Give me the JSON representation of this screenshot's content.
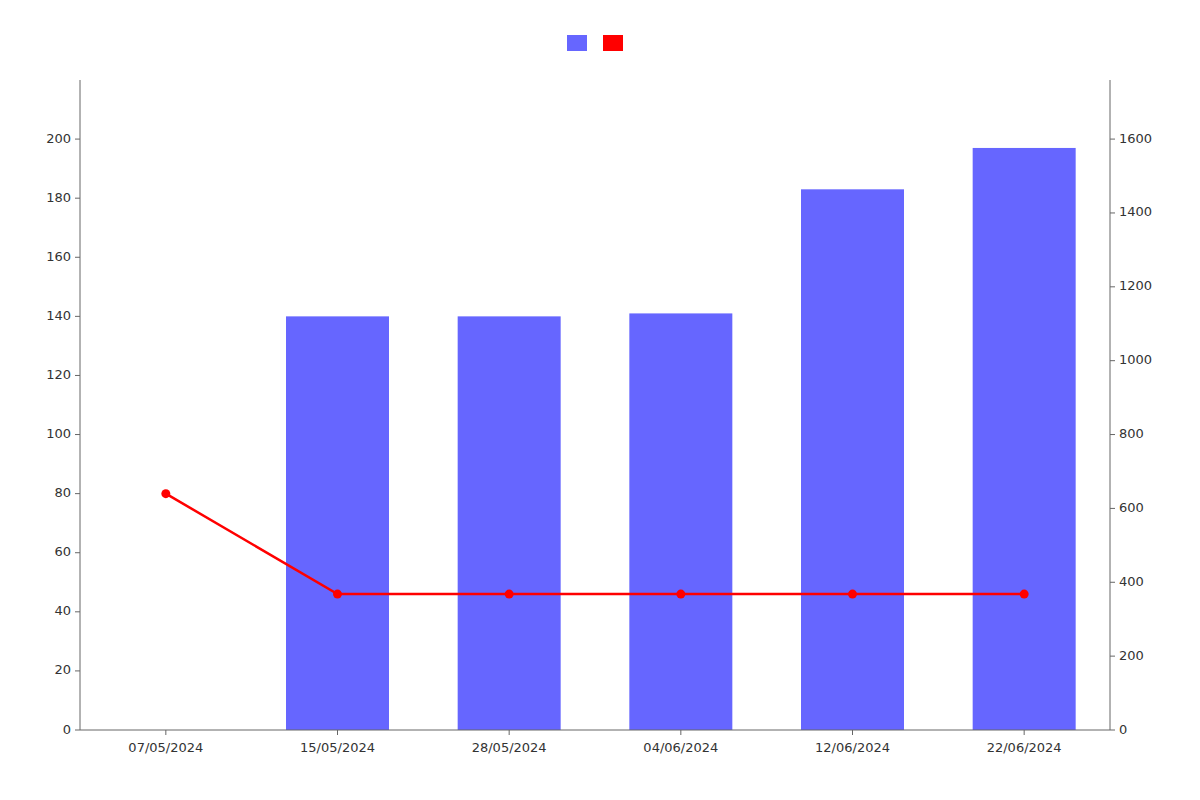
{
  "chart_data": {
    "type": "bar",
    "categories": [
      "07/05/2024",
      "15/05/2024",
      "28/05/2024",
      "04/06/2024",
      "12/06/2024",
      "22/06/2024"
    ],
    "series": [
      {
        "type": "bar",
        "color": "#6666ff",
        "values": [
          0,
          140,
          140,
          141,
          183,
          197
        ]
      },
      {
        "type": "line",
        "color": "#ff0000",
        "marker": "circle",
        "values": [
          80,
          46,
          46,
          46,
          46,
          46
        ]
      }
    ],
    "ylim": [
      0,
      220
    ],
    "yticks": [
      0,
      20,
      40,
      60,
      80,
      100,
      120,
      140,
      160,
      180,
      200
    ],
    "y2lim": [
      0,
      1760
    ],
    "y2ticks": [
      0,
      200,
      400,
      600,
      800,
      1000,
      1200,
      1400,
      1600
    ],
    "grid": false,
    "legend": "top"
  }
}
